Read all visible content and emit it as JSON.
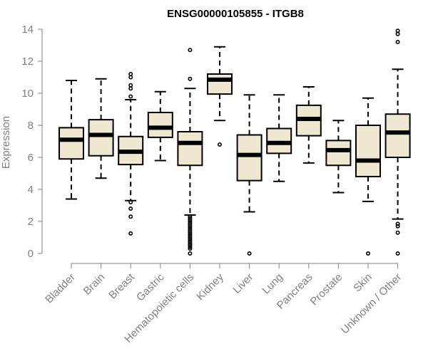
{
  "chart_data": {
    "type": "boxplot",
    "title": "ENSG00000105855 - ITGB8",
    "xlabel": "",
    "ylabel": "Expression",
    "ylim": [
      0,
      14
    ],
    "yticks": [
      0,
      2,
      4,
      6,
      8,
      10,
      12,
      14
    ],
    "grid": false,
    "colors": {
      "box_fill": "#efe8d0",
      "stroke": "#000000",
      "axis": "#7f7f7f",
      "text": "#808080"
    },
    "categories": [
      "Bladder",
      "Brain",
      "Breast",
      "Gastric",
      "Hematopoietic cells",
      "Kidney",
      "Liver",
      "Lung",
      "Pancreas",
      "Prostate",
      "Skin",
      "Unknown / Other"
    ],
    "boxes": [
      {
        "label": "Bladder",
        "whisker_low": 3.4,
        "q1": 5.9,
        "median": 7.1,
        "q3": 7.85,
        "whisker_high": 10.8,
        "outliers": []
      },
      {
        "label": "Brain",
        "whisker_low": 4.7,
        "q1": 6.1,
        "median": 7.4,
        "q3": 8.35,
        "whisker_high": 10.9,
        "outliers": []
      },
      {
        "label": "Breast",
        "whisker_low": 3.3,
        "q1": 5.55,
        "median": 6.35,
        "q3": 7.3,
        "whisker_high": 9.6,
        "outliers": [
          11.2,
          11.0,
          10.5,
          10.3,
          9.8,
          3.2,
          2.8,
          2.3,
          1.25
        ]
      },
      {
        "label": "Gastric",
        "whisker_low": 5.8,
        "q1": 7.25,
        "median": 7.85,
        "q3": 8.8,
        "whisker_high": 10.1,
        "outliers": []
      },
      {
        "label": "Hematopoietic cells",
        "whisker_low": 2.4,
        "q1": 5.5,
        "median": 6.9,
        "q3": 7.6,
        "whisker_high": 10.3,
        "outliers": [
          12.7,
          10.9,
          2.3,
          2.2,
          2.1,
          2.0,
          1.9,
          1.8,
          1.7,
          1.6,
          1.5,
          1.4,
          1.3,
          1.2,
          1.1,
          1.0,
          0.9,
          0.8,
          0.7,
          0.6,
          0.5,
          0.4,
          0.3,
          0.0
        ]
      },
      {
        "label": "Kidney",
        "whisker_low": 8.3,
        "q1": 9.95,
        "median": 10.85,
        "q3": 11.2,
        "whisker_high": 12.9,
        "outliers": [
          6.8
        ]
      },
      {
        "label": "Liver",
        "whisker_low": 2.6,
        "q1": 4.55,
        "median": 6.15,
        "q3": 7.4,
        "whisker_high": 9.9,
        "outliers": [
          0.0
        ]
      },
      {
        "label": "Lung",
        "whisker_low": 4.5,
        "q1": 6.25,
        "median": 6.9,
        "q3": 7.8,
        "whisker_high": 9.9,
        "outliers": []
      },
      {
        "label": "Pancreas",
        "whisker_low": 5.65,
        "q1": 7.35,
        "median": 8.4,
        "q3": 9.25,
        "whisker_high": 10.4,
        "outliers": []
      },
      {
        "label": "Prostate",
        "whisker_low": 3.8,
        "q1": 5.5,
        "median": 6.45,
        "q3": 7.05,
        "whisker_high": 8.3,
        "outliers": []
      },
      {
        "label": "Skin",
        "whisker_low": 3.25,
        "q1": 4.8,
        "median": 5.8,
        "q3": 8.0,
        "whisker_high": 9.7,
        "outliers": [
          0.0
        ]
      },
      {
        "label": "Unknown / Other",
        "whisker_low": 2.15,
        "q1": 6.0,
        "median": 7.55,
        "q3": 8.7,
        "whisker_high": 11.5,
        "outliers": [
          13.9,
          13.7,
          13.2,
          1.85,
          1.7,
          1.3,
          0.0
        ]
      }
    ]
  }
}
